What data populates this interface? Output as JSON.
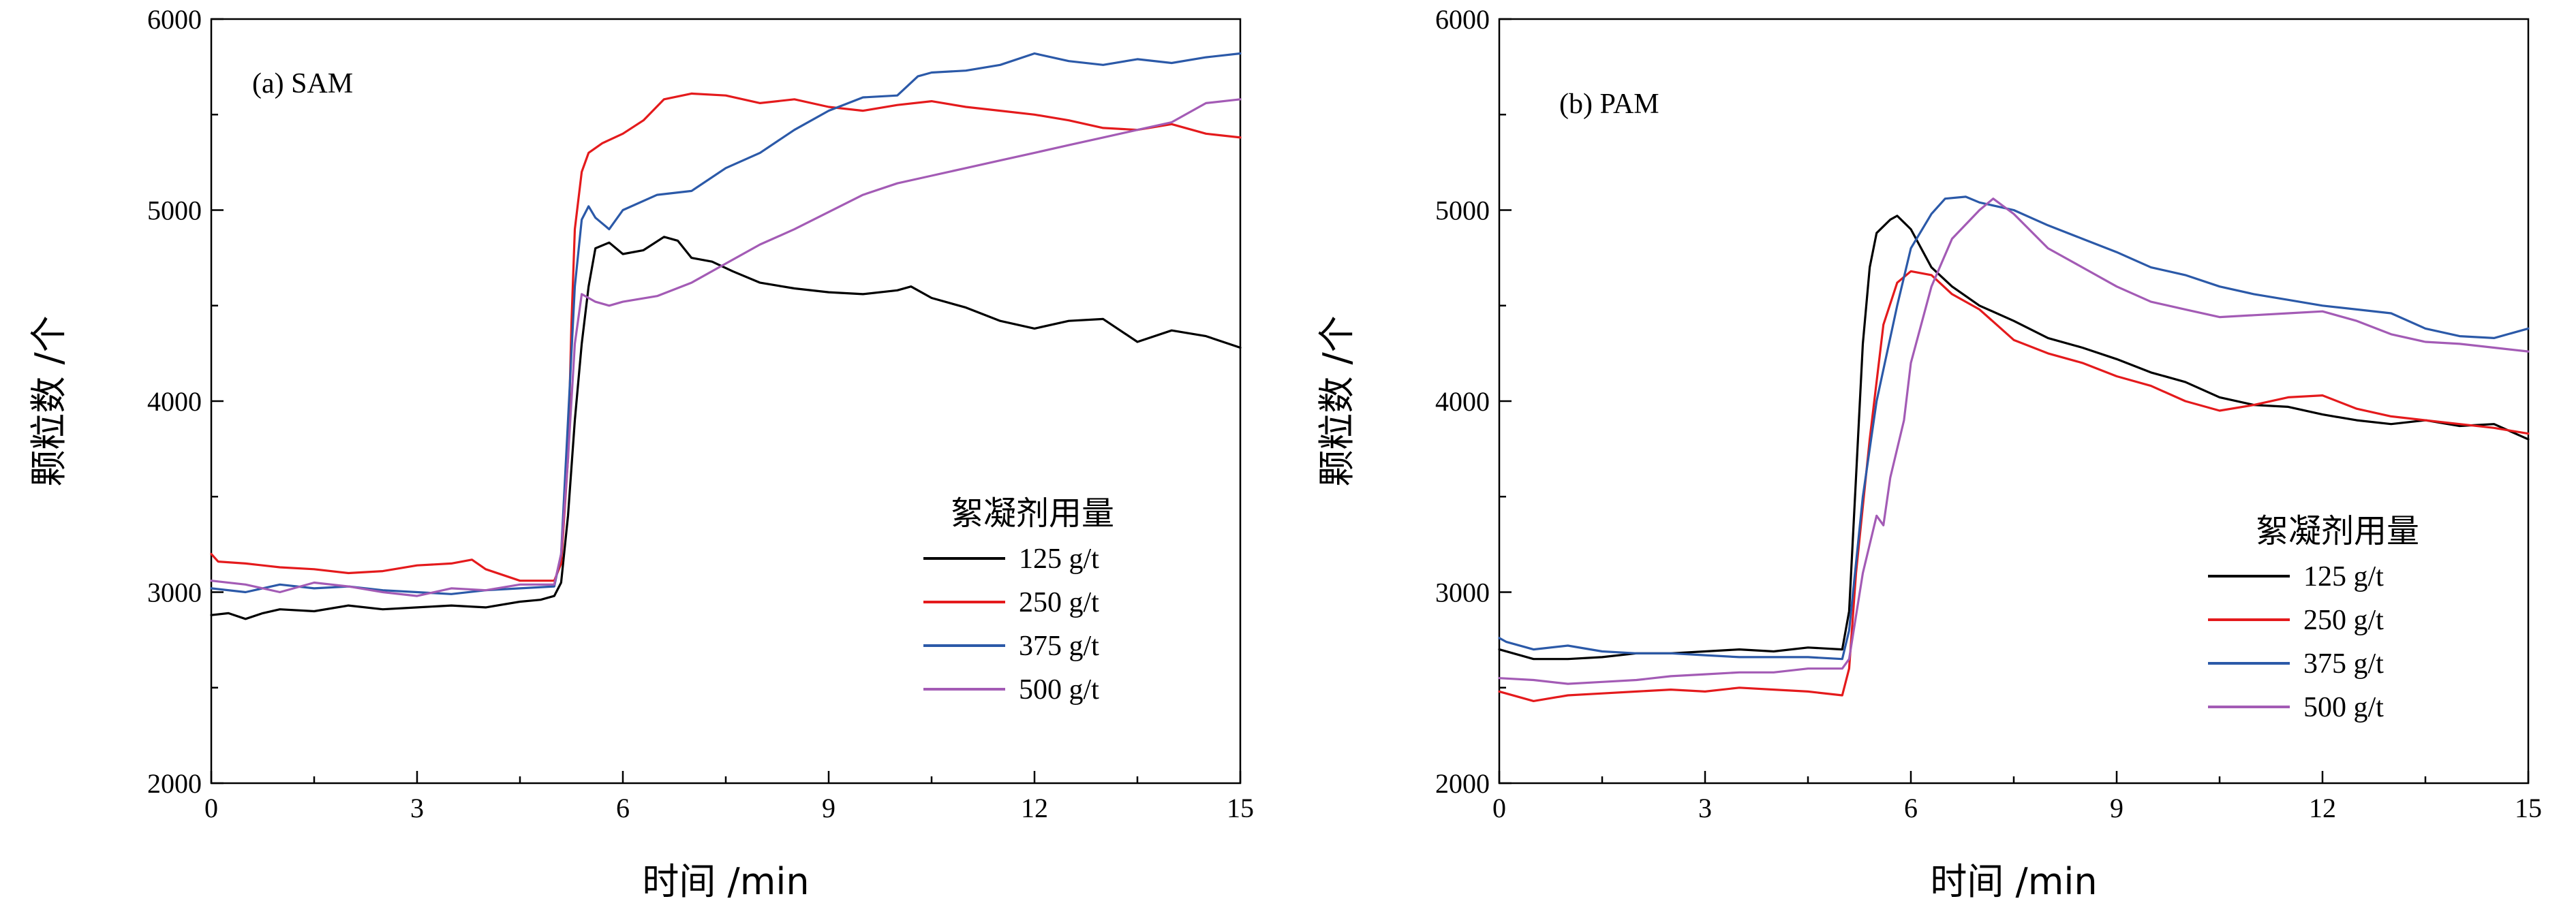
{
  "chart_data": [
    {
      "type": "line",
      "panel_label": "(a) SAM",
      "xlabel": "时间 /min",
      "ylabel": "颗粒数 /个",
      "xlim": [
        0,
        15
      ],
      "ylim": [
        2000,
        6000
      ],
      "xticks": [
        "0",
        "3",
        "6",
        "9",
        "12",
        "15"
      ],
      "yticks": [
        "2000",
        "3000",
        "4000",
        "5000",
        "6000"
      ],
      "legend_title": "絮凝剂用量",
      "legend_position": "right-middle",
      "grid": false,
      "series": [
        {
          "name": "125 g/t",
          "color": "#000000",
          "x": [
            0,
            0.25,
            0.5,
            0.75,
            1,
            1.5,
            2,
            2.5,
            3,
            3.5,
            4,
            4.5,
            4.8,
            5.0,
            5.1,
            5.2,
            5.3,
            5.4,
            5.5,
            5.6,
            5.8,
            6.0,
            6.3,
            6.6,
            6.8,
            7.0,
            7.3,
            7.6,
            8.0,
            8.5,
            9.0,
            9.5,
            10.0,
            10.2,
            10.5,
            11.0,
            11.5,
            12.0,
            12.5,
            13.0,
            13.5,
            14.0,
            14.5,
            15.0
          ],
          "y": [
            2880,
            2890,
            2860,
            2890,
            2910,
            2900,
            2930,
            2910,
            2920,
            2930,
            2920,
            2950,
            2960,
            2980,
            3050,
            3400,
            3900,
            4300,
            4600,
            4800,
            4830,
            4770,
            4790,
            4860,
            4840,
            4750,
            4730,
            4680,
            4620,
            4590,
            4570,
            4560,
            4580,
            4600,
            4540,
            4490,
            4420,
            4380,
            4420,
            4430,
            4310,
            4370,
            4340,
            4280
          ]
        },
        {
          "name": "250 g/t",
          "color": "#e41a1c",
          "x": [
            0,
            0.1,
            0.5,
            1,
            1.5,
            2,
            2.5,
            3,
            3.5,
            3.8,
            4.0,
            4.5,
            5.0,
            5.1,
            5.2,
            5.25,
            5.3,
            5.4,
            5.5,
            5.7,
            6.0,
            6.3,
            6.6,
            7.0,
            7.5,
            8.0,
            8.5,
            9.0,
            9.5,
            10.0,
            10.5,
            11.0,
            11.5,
            12.0,
            12.5,
            13.0,
            13.5,
            14.0,
            14.5,
            15.0
          ],
          "y": [
            3200,
            3160,
            3150,
            3130,
            3120,
            3100,
            3110,
            3140,
            3150,
            3170,
            3120,
            3060,
            3060,
            3150,
            3700,
            4400,
            4900,
            5200,
            5300,
            5350,
            5400,
            5470,
            5580,
            5610,
            5600,
            5560,
            5580,
            5540,
            5520,
            5550,
            5570,
            5540,
            5520,
            5500,
            5470,
            5430,
            5420,
            5450,
            5400,
            5380
          ]
        },
        {
          "name": "375 g/t",
          "color": "#2b59a8",
          "x": [
            0,
            0.5,
            1,
            1.5,
            2,
            2.5,
            3,
            3.5,
            4,
            4.5,
            5.0,
            5.1,
            5.2,
            5.3,
            5.4,
            5.5,
            5.6,
            5.8,
            6.0,
            6.5,
            7.0,
            7.5,
            8.0,
            8.5,
            9.0,
            9.5,
            10.0,
            10.3,
            10.5,
            11.0,
            11.5,
            12.0,
            12.5,
            13.0,
            13.5,
            14.0,
            14.5,
            15.0
          ],
          "y": [
            3020,
            3000,
            3040,
            3020,
            3030,
            3010,
            3000,
            2990,
            3010,
            3020,
            3030,
            3200,
            3900,
            4600,
            4950,
            5020,
            4960,
            4900,
            5000,
            5080,
            5100,
            5220,
            5300,
            5420,
            5520,
            5590,
            5600,
            5700,
            5720,
            5730,
            5760,
            5820,
            5780,
            5760,
            5790,
            5770,
            5800,
            5820
          ]
        },
        {
          "name": "500 g/t",
          "color": "#a35bb5",
          "x": [
            0,
            0.5,
            1,
            1.5,
            2,
            2.5,
            3,
            3.5,
            4,
            4.5,
            5.0,
            5.1,
            5.2,
            5.3,
            5.4,
            5.6,
            5.8,
            6.0,
            6.5,
            7.0,
            7.5,
            8.0,
            8.5,
            9.0,
            9.5,
            10.0,
            10.5,
            11.0,
            11.5,
            12.0,
            12.5,
            13.0,
            13.5,
            14.0,
            14.5,
            15.0
          ],
          "y": [
            3060,
            3040,
            3000,
            3050,
            3030,
            3000,
            2980,
            3020,
            3010,
            3040,
            3040,
            3200,
            3700,
            4300,
            4560,
            4520,
            4500,
            4520,
            4550,
            4620,
            4720,
            4820,
            4900,
            4990,
            5080,
            5140,
            5180,
            5220,
            5260,
            5300,
            5340,
            5380,
            5420,
            5460,
            5560,
            5580
          ]
        }
      ]
    },
    {
      "type": "line",
      "panel_label": "(b) PAM",
      "xlabel": "时间 /min",
      "ylabel": "颗粒数 /个",
      "xlim": [
        0,
        15
      ],
      "ylim": [
        2000,
        6000
      ],
      "xticks": [
        "0",
        "3",
        "6",
        "9",
        "12",
        "15"
      ],
      "yticks": [
        "2000",
        "3000",
        "4000",
        "5000",
        "6000"
      ],
      "legend_title": "絮凝剂用量",
      "legend_position": "right-middle",
      "grid": false,
      "series": [
        {
          "name": "125 g/t",
          "color": "#000000",
          "x": [
            0,
            0.5,
            1,
            1.5,
            2,
            2.5,
            3,
            3.5,
            4,
            4.5,
            5.0,
            5.1,
            5.2,
            5.3,
            5.4,
            5.5,
            5.7,
            5.8,
            6.0,
            6.3,
            6.6,
            7.0,
            7.5,
            8.0,
            8.5,
            9.0,
            9.5,
            10.0,
            10.5,
            11.0,
            11.5,
            12.0,
            12.5,
            13.0,
            13.5,
            14.0,
            14.5,
            15.0
          ],
          "y": [
            2700,
            2650,
            2650,
            2660,
            2680,
            2680,
            2690,
            2700,
            2690,
            2710,
            2700,
            2900,
            3600,
            4300,
            4700,
            4880,
            4950,
            4970,
            4900,
            4700,
            4600,
            4500,
            4420,
            4330,
            4280,
            4220,
            4150,
            4100,
            4020,
            3980,
            3970,
            3930,
            3900,
            3880,
            3900,
            3870,
            3880,
            3800
          ]
        },
        {
          "name": "250 g/t",
          "color": "#e41a1c",
          "x": [
            0,
            0.5,
            1,
            1.5,
            2,
            2.5,
            3,
            3.5,
            4,
            4.5,
            5.0,
            5.1,
            5.2,
            5.4,
            5.6,
            5.8,
            6.0,
            6.3,
            6.6,
            7.0,
            7.5,
            8.0,
            8.5,
            9.0,
            9.5,
            10.0,
            10.5,
            11.0,
            11.5,
            12.0,
            12.5,
            13.0,
            13.5,
            14.0,
            14.5,
            15.0
          ],
          "y": [
            2480,
            2430,
            2460,
            2470,
            2480,
            2490,
            2480,
            2500,
            2490,
            2480,
            2460,
            2600,
            3100,
            3800,
            4400,
            4620,
            4680,
            4660,
            4560,
            4480,
            4320,
            4250,
            4200,
            4130,
            4080,
            4000,
            3950,
            3980,
            4020,
            4030,
            3960,
            3920,
            3900,
            3880,
            3860,
            3830
          ]
        },
        {
          "name": "375 g/t",
          "color": "#2b59a8",
          "x": [
            0,
            0.1,
            0.5,
            1,
            1.5,
            2,
            2.5,
            3,
            3.5,
            4,
            4.5,
            5.0,
            5.1,
            5.3,
            5.5,
            5.8,
            6.0,
            6.3,
            6.5,
            6.8,
            7.0,
            7.5,
            8.0,
            8.5,
            9.0,
            9.5,
            10.0,
            10.5,
            11.0,
            11.5,
            12.0,
            12.5,
            13.0,
            13.5,
            14.0,
            14.5,
            15.0
          ],
          "y": [
            2760,
            2740,
            2700,
            2720,
            2690,
            2680,
            2680,
            2670,
            2660,
            2660,
            2660,
            2650,
            2800,
            3500,
            4000,
            4500,
            4800,
            4980,
            5060,
            5070,
            5040,
            5000,
            4920,
            4850,
            4780,
            4700,
            4660,
            4600,
            4560,
            4530,
            4500,
            4480,
            4460,
            4380,
            4340,
            4330,
            4380
          ]
        },
        {
          "name": "500 g/t",
          "color": "#a35bb5",
          "x": [
            0,
            0.5,
            1,
            1.5,
            2,
            2.5,
            3,
            3.5,
            4,
            4.5,
            5.0,
            5.1,
            5.3,
            5.5,
            5.6,
            5.7,
            5.9,
            6.0,
            6.3,
            6.6,
            7.0,
            7.2,
            7.5,
            8.0,
            8.5,
            9.0,
            9.5,
            10.0,
            10.5,
            11.0,
            11.5,
            12.0,
            12.5,
            13.0,
            13.5,
            14.0,
            14.5,
            15.0
          ],
          "y": [
            2550,
            2540,
            2520,
            2530,
            2540,
            2560,
            2570,
            2580,
            2580,
            2600,
            2600,
            2650,
            3100,
            3400,
            3350,
            3600,
            3900,
            4200,
            4600,
            4850,
            5000,
            5060,
            4980,
            4800,
            4700,
            4600,
            4520,
            4480,
            4440,
            4450,
            4460,
            4470,
            4420,
            4350,
            4310,
            4300,
            4280,
            4260
          ]
        }
      ]
    }
  ]
}
